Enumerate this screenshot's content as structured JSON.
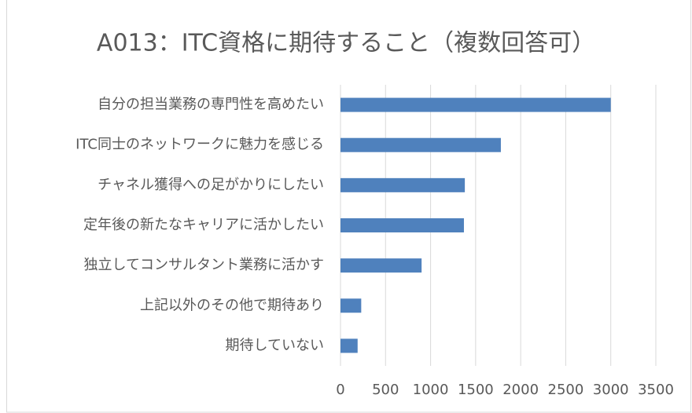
{
  "chart_data": {
    "type": "bar",
    "orientation": "horizontal",
    "title": "A013：ITC資格に期待すること（複数回答可）",
    "categories": [
      "自分の担当業務の専門性を高めたい",
      "ITC同士のネットワークに魅力を感じる",
      "チャネル獲得への足がかりにしたい",
      "定年後の新たなキャリアに活かしたい",
      "独立してコンサルタント業務に活かす",
      "上記以外のその他で期待あり",
      "期待していない"
    ],
    "values": [
      3000,
      1780,
      1380,
      1370,
      900,
      230,
      190
    ],
    "color": "#4f81bd",
    "xlim": [
      0,
      3500
    ],
    "xticks": [
      0,
      500,
      1000,
      1500,
      2000,
      2500,
      3000,
      3500
    ],
    "grid": true
  }
}
